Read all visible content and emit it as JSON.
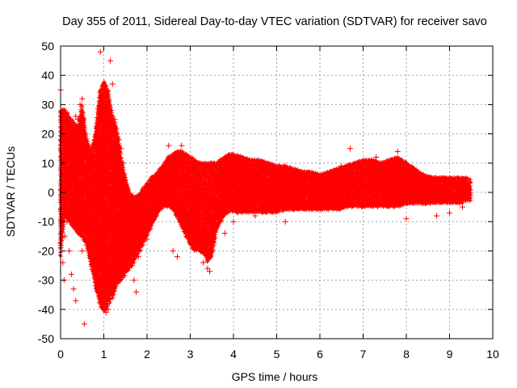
{
  "chart_data": {
    "type": "scatter",
    "title": "Day 355 of 2011, Sidereal Day-to-day VTEC variation (SDTVAR) for receiver savo",
    "xlabel": "GPS time / hours",
    "ylabel": "SDTVAR / TECUs",
    "xlim": [
      0,
      10
    ],
    "ylim": [
      -50,
      50
    ],
    "xticks": [
      "0",
      "1",
      "2",
      "3",
      "4",
      "5",
      "6",
      "7",
      "8",
      "9",
      "10"
    ],
    "yticks": [
      "-50",
      "-40",
      "-30",
      "-20",
      "-10",
      "0",
      "10",
      "20",
      "30",
      "40",
      "50"
    ],
    "grid": true,
    "marker": "+",
    "color": "#ff0000",
    "series": [
      {
        "name": "SDTVAR",
        "bands": [
          {
            "x": 0.0,
            "lo": -22,
            "hi": 28
          },
          {
            "x": 0.1,
            "lo": -8,
            "hi": 28
          },
          {
            "x": 0.2,
            "lo": -10,
            "hi": 26
          },
          {
            "x": 0.3,
            "lo": -12,
            "hi": 24
          },
          {
            "x": 0.4,
            "lo": -14,
            "hi": 22
          },
          {
            "x": 0.5,
            "lo": -15,
            "hi": 30
          },
          {
            "x": 0.6,
            "lo": -18,
            "hi": 18
          },
          {
            "x": 0.7,
            "lo": -25,
            "hi": 14
          },
          {
            "x": 0.8,
            "lo": -32,
            "hi": 20
          },
          {
            "x": 0.9,
            "lo": -38,
            "hi": 34
          },
          {
            "x": 1.0,
            "lo": -41,
            "hi": 38
          },
          {
            "x": 1.1,
            "lo": -39,
            "hi": 35
          },
          {
            "x": 1.2,
            "lo": -36,
            "hi": 26
          },
          {
            "x": 1.3,
            "lo": -32,
            "hi": 22
          },
          {
            "x": 1.4,
            "lo": -30,
            "hi": 12
          },
          {
            "x": 1.5,
            "lo": -28,
            "hi": 5
          },
          {
            "x": 1.6,
            "lo": -26,
            "hi": 0
          },
          {
            "x": 1.7,
            "lo": -24,
            "hi": -2
          },
          {
            "x": 1.8,
            "lo": -21,
            "hi": -1
          },
          {
            "x": 1.9,
            "lo": -18,
            "hi": 1
          },
          {
            "x": 2.0,
            "lo": -15,
            "hi": 3
          },
          {
            "x": 2.1,
            "lo": -12,
            "hi": 5
          },
          {
            "x": 2.2,
            "lo": -9,
            "hi": 6
          },
          {
            "x": 2.3,
            "lo": -6,
            "hi": 8
          },
          {
            "x": 2.4,
            "lo": -5,
            "hi": 10
          },
          {
            "x": 2.5,
            "lo": -5,
            "hi": 12
          },
          {
            "x": 2.6,
            "lo": -6,
            "hi": 13
          },
          {
            "x": 2.7,
            "lo": -9,
            "hi": 14
          },
          {
            "x": 2.8,
            "lo": -12,
            "hi": 14
          },
          {
            "x": 2.9,
            "lo": -15,
            "hi": 13
          },
          {
            "x": 3.0,
            "lo": -18,
            "hi": 12
          },
          {
            "x": 3.1,
            "lo": -20,
            "hi": 11
          },
          {
            "x": 3.2,
            "lo": -20,
            "hi": 10
          },
          {
            "x": 3.3,
            "lo": -21,
            "hi": 10
          },
          {
            "x": 3.4,
            "lo": -24,
            "hi": 10
          },
          {
            "x": 3.5,
            "lo": -22,
            "hi": 10
          },
          {
            "x": 3.6,
            "lo": -14,
            "hi": 10
          },
          {
            "x": 3.7,
            "lo": -10,
            "hi": 11
          },
          {
            "x": 3.8,
            "lo": -8,
            "hi": 12
          },
          {
            "x": 3.9,
            "lo": -7,
            "hi": 13
          },
          {
            "x": 4.0,
            "lo": -7,
            "hi": 13
          },
          {
            "x": 4.2,
            "lo": -7,
            "hi": 12
          },
          {
            "x": 4.4,
            "lo": -7,
            "hi": 11
          },
          {
            "x": 4.6,
            "lo": -7,
            "hi": 11
          },
          {
            "x": 4.8,
            "lo": -7,
            "hi": 10
          },
          {
            "x": 5.0,
            "lo": -7,
            "hi": 9
          },
          {
            "x": 5.2,
            "lo": -6,
            "hi": 9
          },
          {
            "x": 5.4,
            "lo": -6,
            "hi": 8
          },
          {
            "x": 5.6,
            "lo": -6,
            "hi": 7
          },
          {
            "x": 5.8,
            "lo": -6,
            "hi": 7
          },
          {
            "x": 6.0,
            "lo": -6,
            "hi": 6
          },
          {
            "x": 6.2,
            "lo": -6,
            "hi": 7
          },
          {
            "x": 6.4,
            "lo": -6,
            "hi": 8
          },
          {
            "x": 6.6,
            "lo": -5,
            "hi": 9
          },
          {
            "x": 6.8,
            "lo": -5,
            "hi": 10
          },
          {
            "x": 7.0,
            "lo": -5,
            "hi": 11
          },
          {
            "x": 7.2,
            "lo": -5,
            "hi": 11
          },
          {
            "x": 7.4,
            "lo": -5,
            "hi": 10
          },
          {
            "x": 7.6,
            "lo": -5,
            "hi": 11
          },
          {
            "x": 7.8,
            "lo": -5,
            "hi": 12
          },
          {
            "x": 8.0,
            "lo": -4,
            "hi": 10
          },
          {
            "x": 8.2,
            "lo": -4,
            "hi": 8
          },
          {
            "x": 8.4,
            "lo": -4,
            "hi": 6
          },
          {
            "x": 8.6,
            "lo": -4,
            "hi": 5
          },
          {
            "x": 8.8,
            "lo": -4,
            "hi": 5
          },
          {
            "x": 9.0,
            "lo": -4,
            "hi": 5
          },
          {
            "x": 9.2,
            "lo": -4,
            "hi": 5
          },
          {
            "x": 9.4,
            "lo": -3,
            "hi": 5
          },
          {
            "x": 9.5,
            "lo": -3,
            "hi": 4
          }
        ],
        "points": [
          [
            0.0,
            35
          ],
          [
            0.05,
            28
          ],
          [
            0.1,
            27
          ],
          [
            0.15,
            23
          ],
          [
            0.2,
            22
          ],
          [
            0.25,
            21
          ],
          [
            0.3,
            20
          ],
          [
            0.35,
            26
          ],
          [
            0.4,
            25
          ],
          [
            0.45,
            30
          ],
          [
            0.5,
            32
          ],
          [
            0.05,
            -24
          ],
          [
            0.08,
            -30
          ],
          [
            0.1,
            -15
          ],
          [
            0.15,
            -10
          ],
          [
            0.2,
            -20
          ],
          [
            0.25,
            -28
          ],
          [
            0.3,
            -33
          ],
          [
            0.35,
            -37
          ],
          [
            0.3,
            -3
          ],
          [
            0.4,
            -5
          ],
          [
            0.45,
            -12
          ],
          [
            0.5,
            -20
          ],
          [
            0.55,
            -45
          ],
          [
            0.6,
            -18
          ],
          [
            0.7,
            -22
          ],
          [
            0.75,
            5
          ],
          [
            0.8,
            10
          ],
          [
            0.85,
            22
          ],
          [
            0.9,
            29
          ],
          [
            0.92,
            48
          ],
          [
            0.95,
            -39
          ],
          [
            1.0,
            -40
          ],
          [
            1.05,
            -41
          ],
          [
            1.1,
            -40
          ],
          [
            1.15,
            45
          ],
          [
            1.2,
            37
          ],
          [
            1.25,
            25
          ],
          [
            1.3,
            20
          ],
          [
            1.35,
            18
          ],
          [
            1.4,
            15
          ],
          [
            1.45,
            10
          ],
          [
            1.5,
            0
          ],
          [
            1.6,
            -18
          ],
          [
            1.65,
            -25
          ],
          [
            1.7,
            -30
          ],
          [
            1.75,
            -34
          ],
          [
            1.8,
            -22
          ],
          [
            1.85,
            -10
          ],
          [
            1.9,
            -3
          ],
          [
            2.0,
            -16
          ],
          [
            2.1,
            3
          ],
          [
            2.2,
            -7
          ],
          [
            2.5,
            16
          ],
          [
            2.6,
            -20
          ],
          [
            2.7,
            -22
          ],
          [
            2.8,
            16
          ],
          [
            3.0,
            -8
          ],
          [
            3.1,
            -12
          ],
          [
            3.2,
            -18
          ],
          [
            3.3,
            -24
          ],
          [
            3.4,
            -26
          ],
          [
            3.45,
            -27
          ],
          [
            4.0,
            -10
          ],
          [
            4.5,
            -8
          ],
          [
            5.2,
            -10
          ],
          [
            6.5,
            9
          ],
          [
            6.7,
            15
          ],
          [
            7.3,
            12
          ],
          [
            7.8,
            14
          ],
          [
            8.0,
            -9
          ],
          [
            8.7,
            -8
          ],
          [
            9.0,
            -7
          ],
          [
            9.3,
            -5
          ],
          [
            3.8,
            -14
          ]
        ]
      }
    ]
  }
}
